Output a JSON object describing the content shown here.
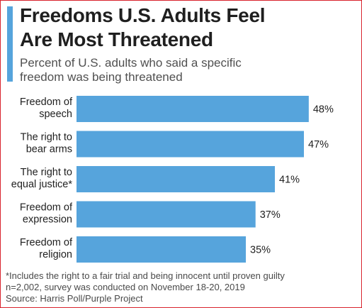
{
  "header": {
    "title_line1": "Freedoms U.S. Adults Feel",
    "title_line2": "Are Most Threatened",
    "subtitle_line1": "Percent of U.S. adults who said a specific",
    "subtitle_line2": "freedom was being threatened"
  },
  "footer": {
    "note": "*Includes the right to a fair trial and being innocent until proven guilty",
    "sample": "n=2,002, survey was conducted on November 18-20, 2019",
    "source": "Source: Harris Poll/Purple Project"
  },
  "colors": {
    "bar": "#56a4dc",
    "accent": "#56a4dc",
    "frame": "#d9232d"
  },
  "chart_data": {
    "type": "bar",
    "orientation": "horizontal",
    "categories": [
      [
        "Freedom of",
        "speech"
      ],
      [
        "The right to",
        "bear arms"
      ],
      [
        "The right to",
        "equal justice*"
      ],
      [
        "Freedom of",
        "expression"
      ],
      [
        "Freedom of",
        "religion"
      ]
    ],
    "values": [
      48,
      47,
      41,
      37,
      35
    ],
    "value_labels": [
      "48%",
      "47%",
      "41%",
      "37%",
      "35%"
    ],
    "unit": "%",
    "xlim": [
      0,
      100
    ],
    "grid": false,
    "legend": "none"
  }
}
